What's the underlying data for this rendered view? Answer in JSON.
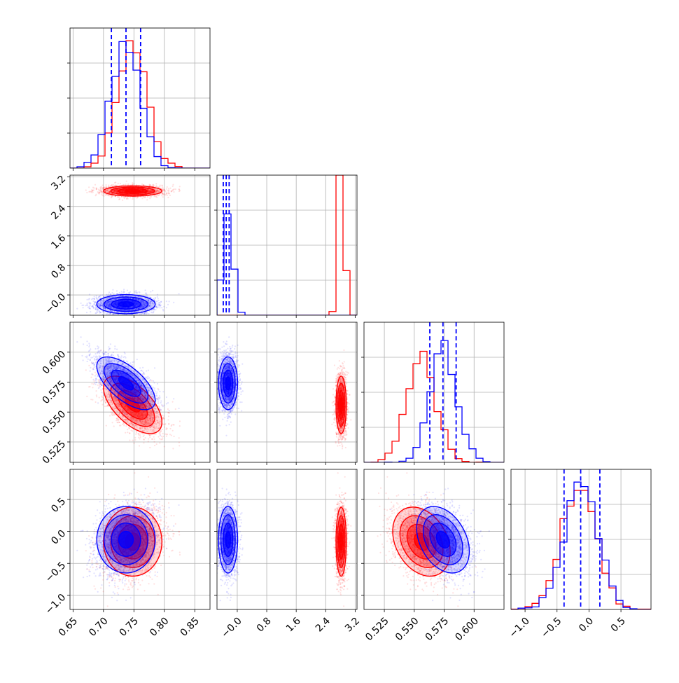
{
  "chart_data": {
    "type": "scatter",
    "title": "",
    "series": [
      {
        "name": "",
        "color": "#0000ff",
        "mean": [
          0.737,
          -0.25,
          0.574,
          -0.13
        ],
        "sd": [
          0.024,
          0.13,
          0.011,
          0.26
        ],
        "corr": {
          "0-2": -0.65,
          "2-3": -0.35
        }
      },
      {
        "name": "",
        "color": "#ff0000",
        "mean": [
          0.748,
          2.82,
          0.556,
          -0.16
        ],
        "sd": [
          0.024,
          0.07,
          0.012,
          0.27
        ],
        "corr": {
          "0-2": -0.6,
          "2-3": -0.3
        }
      }
    ],
    "quantiles": [
      [
        0.713,
        0.737,
        0.761
      ],
      [
        -0.38,
        -0.3,
        -0.22
      ],
      [
        0.563,
        0.574,
        0.585
      ],
      [
        -0.39,
        -0.13,
        0.17
      ]
    ],
    "axes": [
      {
        "range": [
          0.645,
          0.875
        ],
        "ticks": [
          0.65,
          0.7,
          0.75,
          0.8,
          0.85
        ],
        "tick_labels": [
          "0.65",
          "0.70",
          "0.75",
          "0.80",
          "0.85"
        ]
      },
      {
        "range": [
          -0.55,
          3.25
        ],
        "ticks": [
          -0.0,
          0.8,
          1.6,
          2.4,
          3.2
        ],
        "tick_labels": [
          "−0.0",
          "0.8",
          "1.6",
          "2.4",
          "3.2"
        ]
      },
      {
        "range": [
          0.508,
          0.625
        ],
        "ticks": [
          0.525,
          0.55,
          0.575,
          0.6
        ],
        "tick_labels": [
          "0.525",
          "0.550",
          "0.575",
          "0.600"
        ]
      },
      {
        "range": [
          -1.22,
          0.97
        ],
        "ticks": [
          -1.0,
          -0.5,
          0.0,
          0.5
        ],
        "tick_labels": [
          "−1.0",
          "−0.5",
          "0.0",
          "0.5"
        ]
      }
    ],
    "hist_y_max": [
      1.1,
      1.0,
      1.15,
      1.1
    ],
    "grid": true,
    "legend": "none"
  }
}
